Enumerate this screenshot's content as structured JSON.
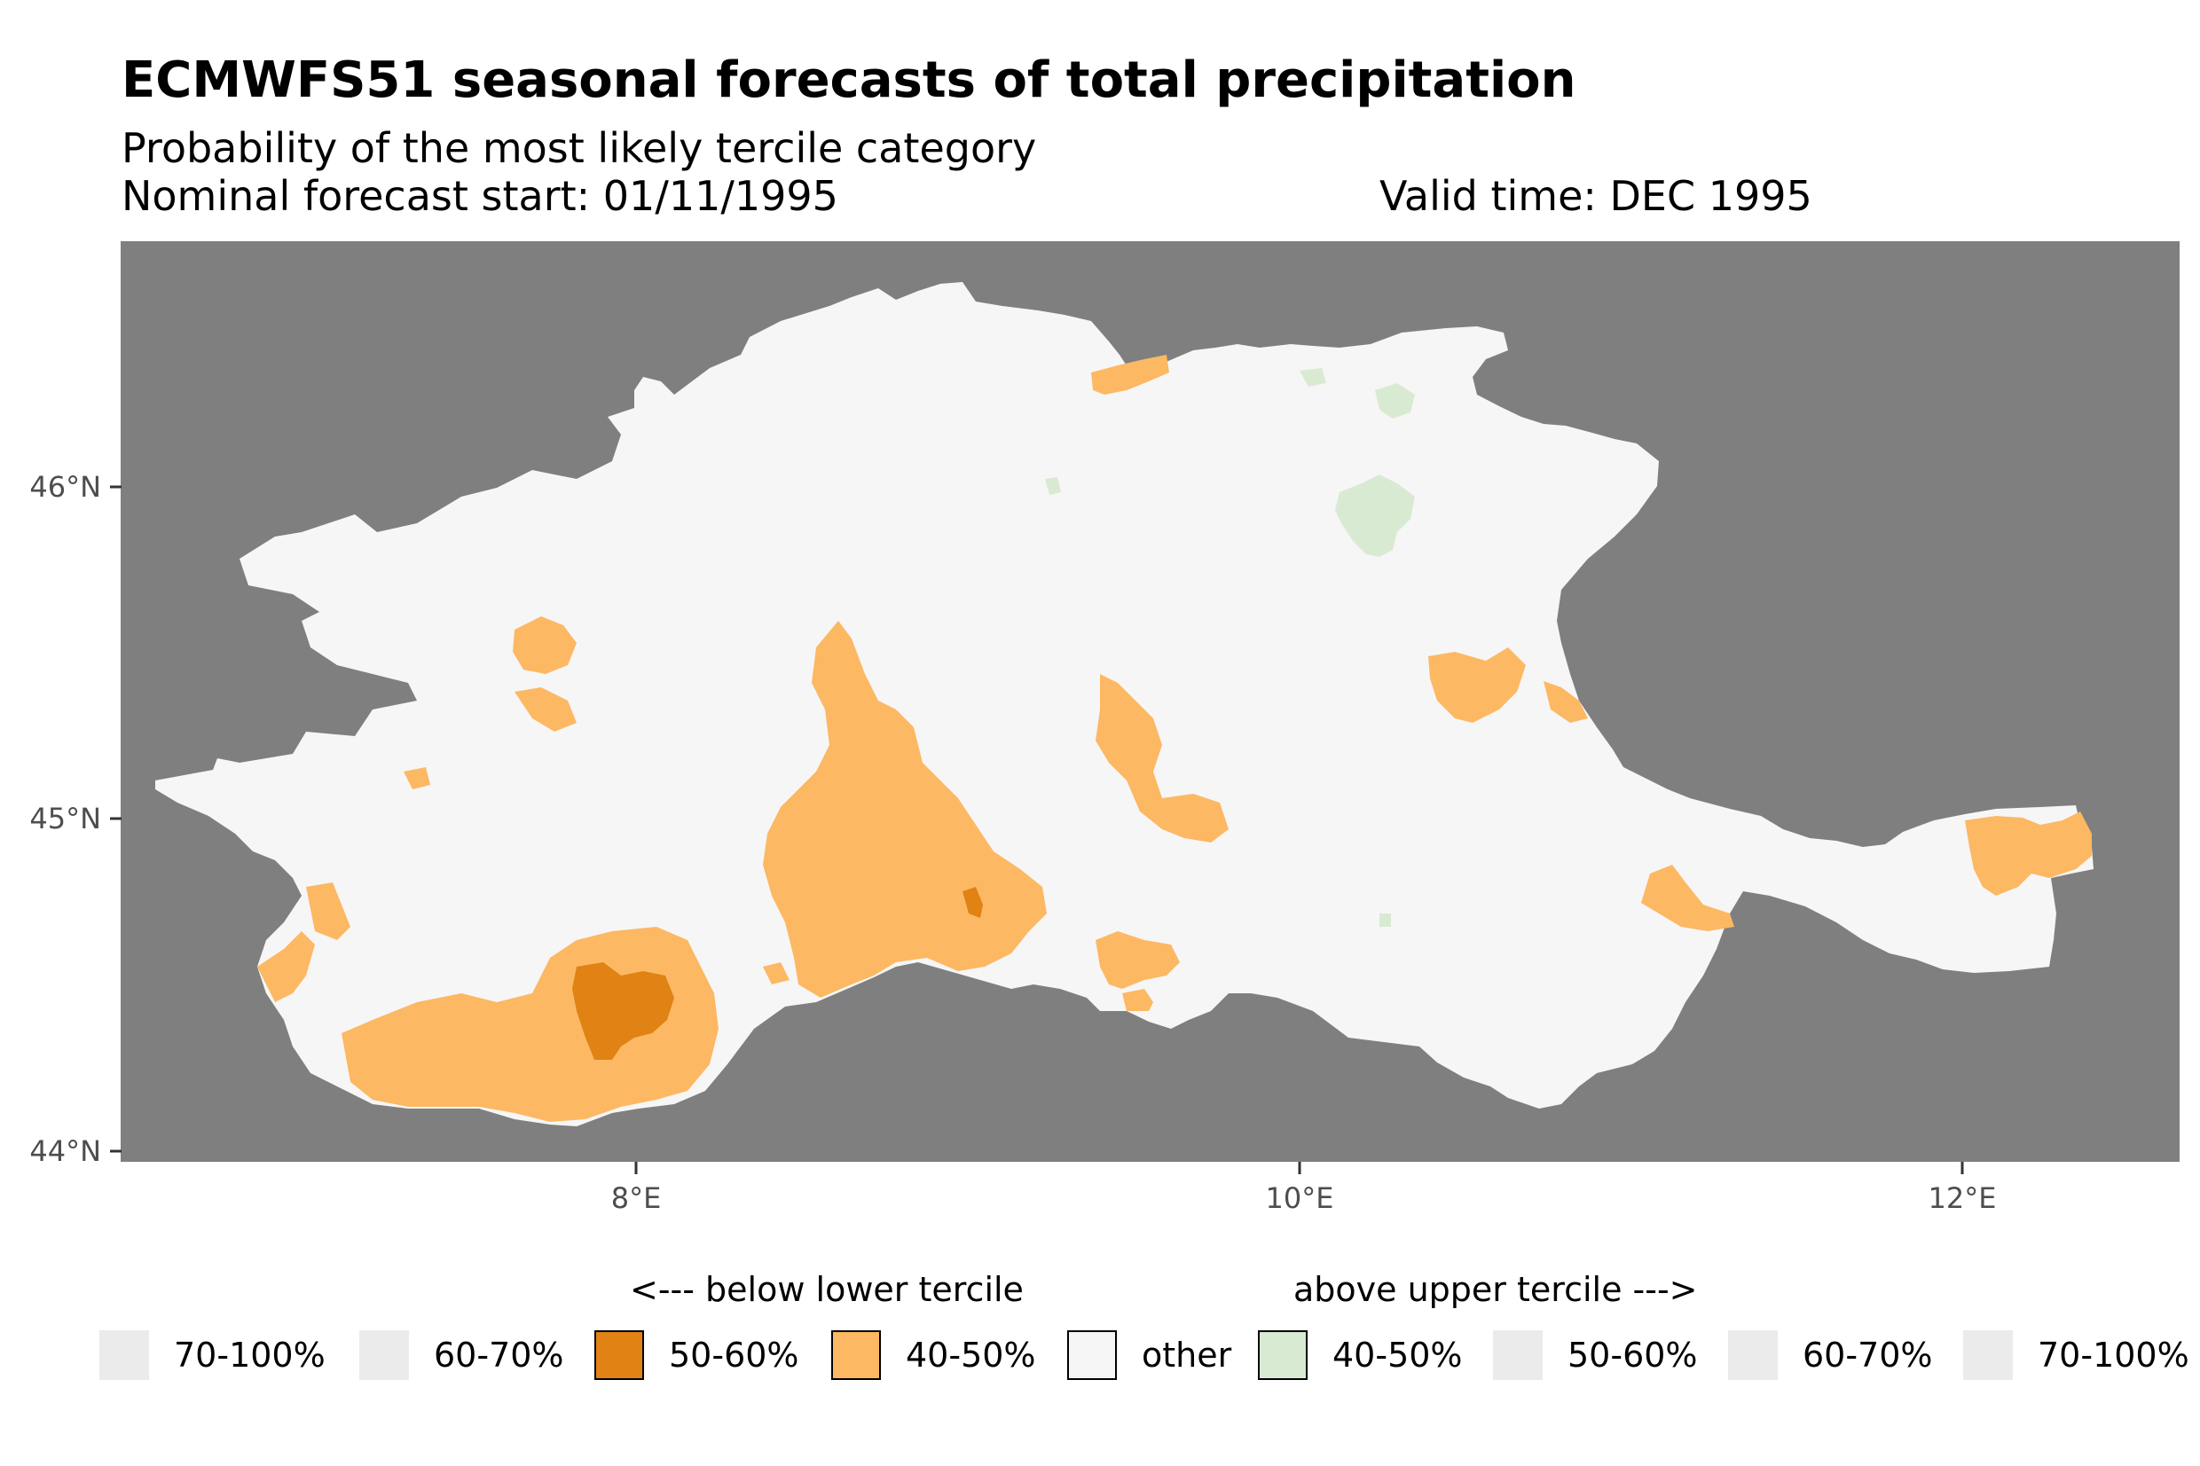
{
  "title": "ECMWFS51 seasonal forecasts of total precipitation",
  "subtitle": "Probability of the most likely tercile category",
  "forecast_start": "Nominal forecast start: 01/11/1995",
  "valid_time": "Valid time: DEC 1995",
  "axes": {
    "x_ticks": [
      "8°E",
      "10°E",
      "12°E"
    ],
    "y_ticks": [
      "46°N",
      "45°N",
      "44°N"
    ]
  },
  "colors": {
    "panel_background": "#7f7f7f",
    "other": "#f6f6f6",
    "below_50_60": "#e08214",
    "below_40_50": "#fdb863",
    "above_40_50": "#d9ead3",
    "empty_key": "#ebebeb"
  },
  "legend": {
    "below_header": "<--- below lower tercile",
    "above_header": "above upper tercile --->",
    "items": [
      {
        "label": "70-100%",
        "color": "#ebebeb",
        "border": false
      },
      {
        "label": "60-70%",
        "color": "#ebebeb",
        "border": false
      },
      {
        "label": "50-60%",
        "color": "#e08214",
        "border": true
      },
      {
        "label": "40-50%",
        "color": "#fdb863",
        "border": true
      },
      {
        "label": "other",
        "color": "#f6f6f6",
        "border": true
      },
      {
        "label": "40-50%",
        "color": "#d9ead3",
        "border": true
      },
      {
        "label": "50-60%",
        "color": "#ebebeb",
        "border": false
      },
      {
        "label": "60-70%",
        "color": "#ebebeb",
        "border": false
      },
      {
        "label": "70-100%",
        "color": "#ebebeb",
        "border": false
      }
    ]
  }
}
